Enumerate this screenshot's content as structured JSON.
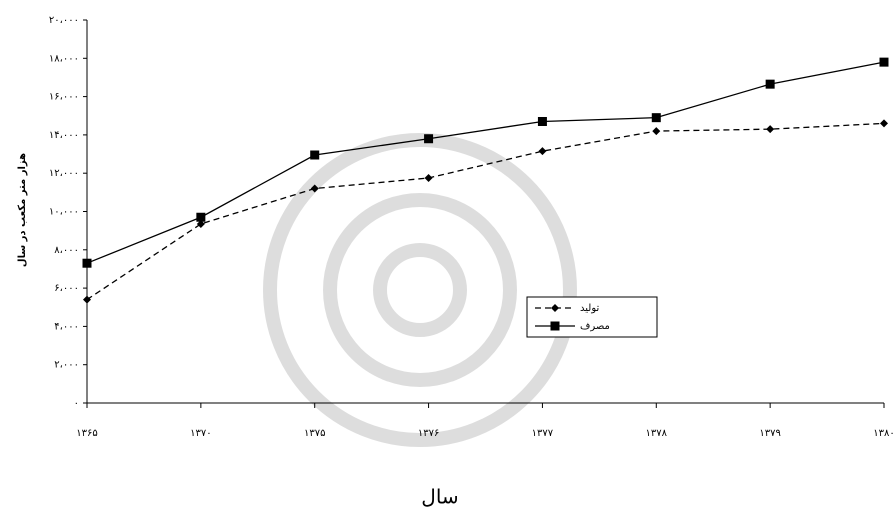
{
  "chart_data": {
    "type": "line",
    "y_label": "هزار متر مکعب در سال",
    "x_label": "سال",
    "categories": [
      "۱۳۶۵",
      "۱۳۷۰",
      "۱۳۷۵",
      "۱۳۷۶",
      "۱۳۷۷",
      "۱۳۷۸",
      "۱۳۷۹",
      "۱۳۸۰"
    ],
    "series": [
      {
        "name": "تولید",
        "color": "#000000",
        "dash": "6,4",
        "marker": "diamond",
        "values": [
          5400,
          9350,
          11200,
          11750,
          13150,
          14200,
          14300,
          14600
        ]
      },
      {
        "name": "مصرف",
        "color": "#000000",
        "dash": "none",
        "marker": "square",
        "values": [
          7300,
          9700,
          12950,
          13800,
          14700,
          14900,
          16650,
          17800
        ]
      }
    ],
    "ylim": [
      0,
      20000
    ],
    "yticks": [
      {
        "value": 0,
        "label": "۰"
      },
      {
        "value": 2000,
        "label": "۲،۰۰۰"
      },
      {
        "value": 4000,
        "label": "۴،۰۰۰"
      },
      {
        "value": 6000,
        "label": "۶،۰۰۰"
      },
      {
        "value": 8000,
        "label": "۸،۰۰۰"
      },
      {
        "value": 10000,
        "label": "۱۰،۰۰۰"
      },
      {
        "value": 12000,
        "label": "۱۲،۰۰۰"
      },
      {
        "value": 14000,
        "label": "۱۴،۰۰۰"
      },
      {
        "value": 16000,
        "label": "۱۶،۰۰۰"
      },
      {
        "value": 18000,
        "label": "۱۸،۰۰۰"
      },
      {
        "value": 20000,
        "label": "۲۰،۰۰۰"
      }
    ],
    "grid": false
  }
}
